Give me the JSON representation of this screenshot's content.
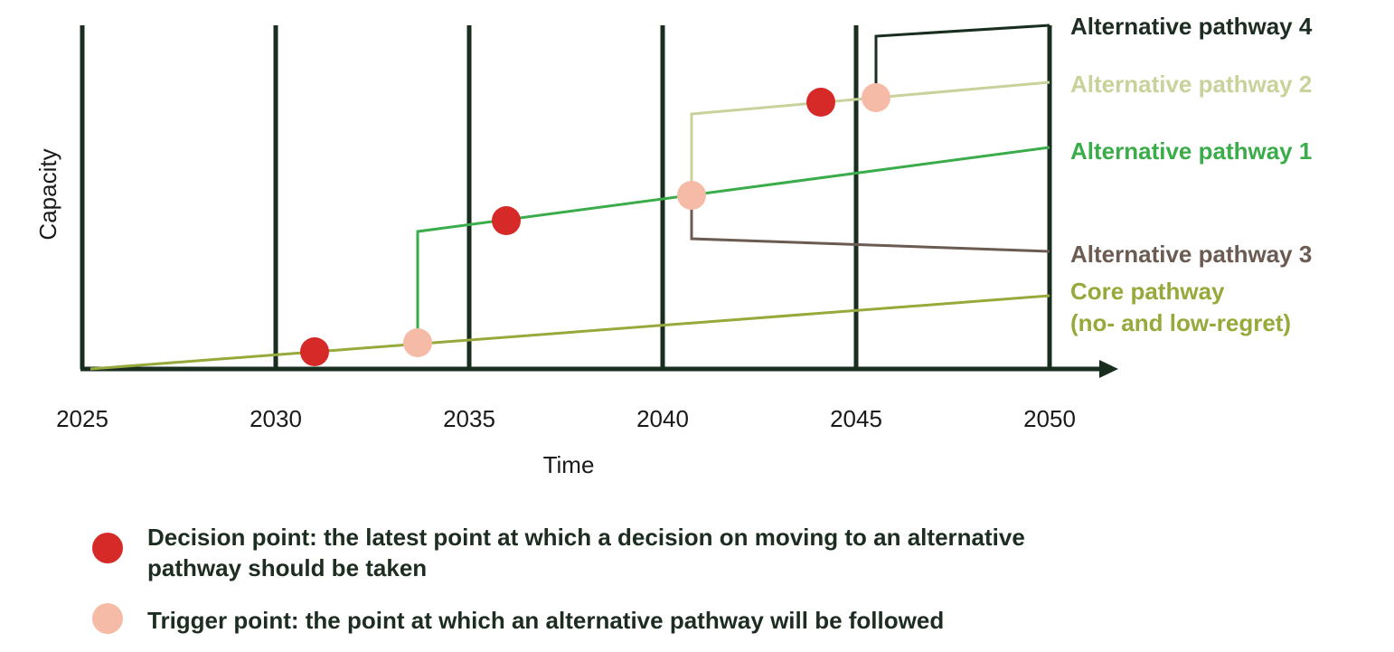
{
  "axes": {
    "x_label": "Time",
    "y_label": "Capacity",
    "x_ticks": [
      "2025",
      "2030",
      "2035",
      "2040",
      "2045",
      "2050"
    ]
  },
  "pathway_labels": {
    "alt4": "Alternative pathway 4",
    "alt2": "Alternative pathway 2",
    "alt1": "Alternative pathway 1",
    "alt3": "Alternative pathway 3",
    "core_line1": "Core pathway",
    "core_line2": "(no- and low-regret)"
  },
  "legend": {
    "decision_line1": "Decision point: the latest point at which a decision on moving to an alternative",
    "decision_line2": "pathway should be taken",
    "trigger": "Trigger point: the point at which an alternative pathway will be followed"
  },
  "colors": {
    "axis": "#1a2e20",
    "core": "#97a93a",
    "alt1": "#3aac4a",
    "alt2": "#c8d29b",
    "alt3": "#6b5b52",
    "alt4": "#1a2e20",
    "decision": "#d62a28",
    "trigger": "#f6bba6",
    "label_alt4": "#1e2d22",
    "label_alt2": "#c8d29b",
    "label_alt1": "#3aac4a",
    "label_alt3": "#6b5b52",
    "label_core": "#97a93a"
  }
}
